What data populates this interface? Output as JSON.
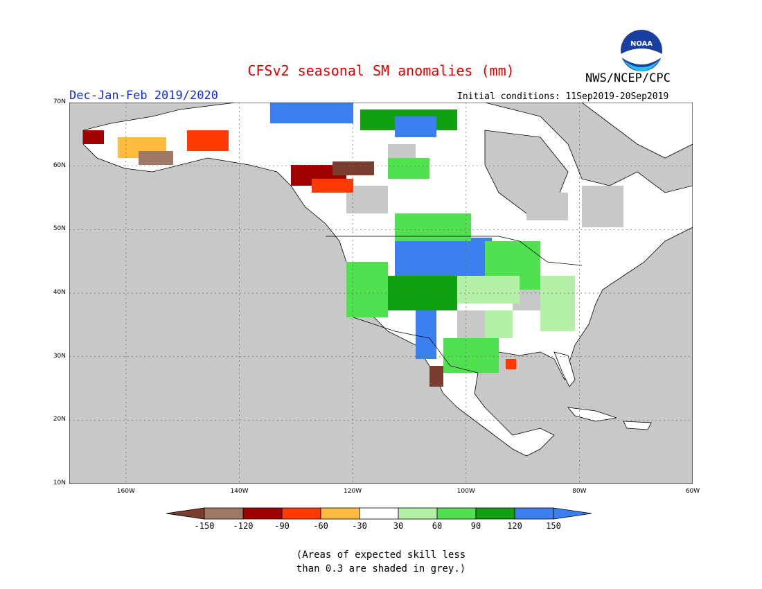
{
  "header": {
    "title": "CFSv2 seasonal SM anomalies (mm)",
    "agency": "NWS/NCEP/CPC",
    "season": "Dec-Jan-Feb 2019/2020",
    "initial_conditions": "Initial conditions: 11Sep2019-20Sep2019",
    "logo_text": "NOAA"
  },
  "map": {
    "lon_range": [
      -170,
      -60
    ],
    "lat_range": [
      10,
      70
    ],
    "lat_labels": [
      "70N",
      "60N",
      "50N",
      "40N",
      "30N",
      "20N",
      "10N"
    ],
    "lon_labels": [
      "160W",
      "140W",
      "120W",
      "100W",
      "80W",
      "60W"
    ],
    "colors": {
      "ocean": "#c8c8c8",
      "neutral": "#ffffff",
      "dry": [
        "#7a3e2e",
        "#a07868",
        "#a00000",
        "#ff3a00",
        "#ffbb40"
      ],
      "wet": [
        "#b4f0a8",
        "#50e050",
        "#10a010",
        "#3c80f0"
      ]
    },
    "anomaly_regions": [
      {
        "name": "northern-plains-wet",
        "cat": "w4"
      },
      {
        "name": "rockies-wet",
        "cat": "w3"
      },
      {
        "name": "western-canada-dry",
        "cat": "d2"
      }
    ]
  },
  "colorbar": {
    "ticks": [
      "-150",
      "-120",
      "-90",
      "-60",
      "-30",
      "30",
      "60",
      "90",
      "120",
      "150"
    ],
    "colors": [
      "#7a3e2e",
      "#a07868",
      "#a00000",
      "#ff3a00",
      "#ffbb40",
      "#ffffff",
      "#b4f0a8",
      "#50e050",
      "#10a010",
      "#3c80f0",
      "#3c80f0"
    ]
  },
  "footnote": {
    "line1": "(Areas of expected skill less",
    "line2": "than 0.3 are shaded in grey.)"
  }
}
